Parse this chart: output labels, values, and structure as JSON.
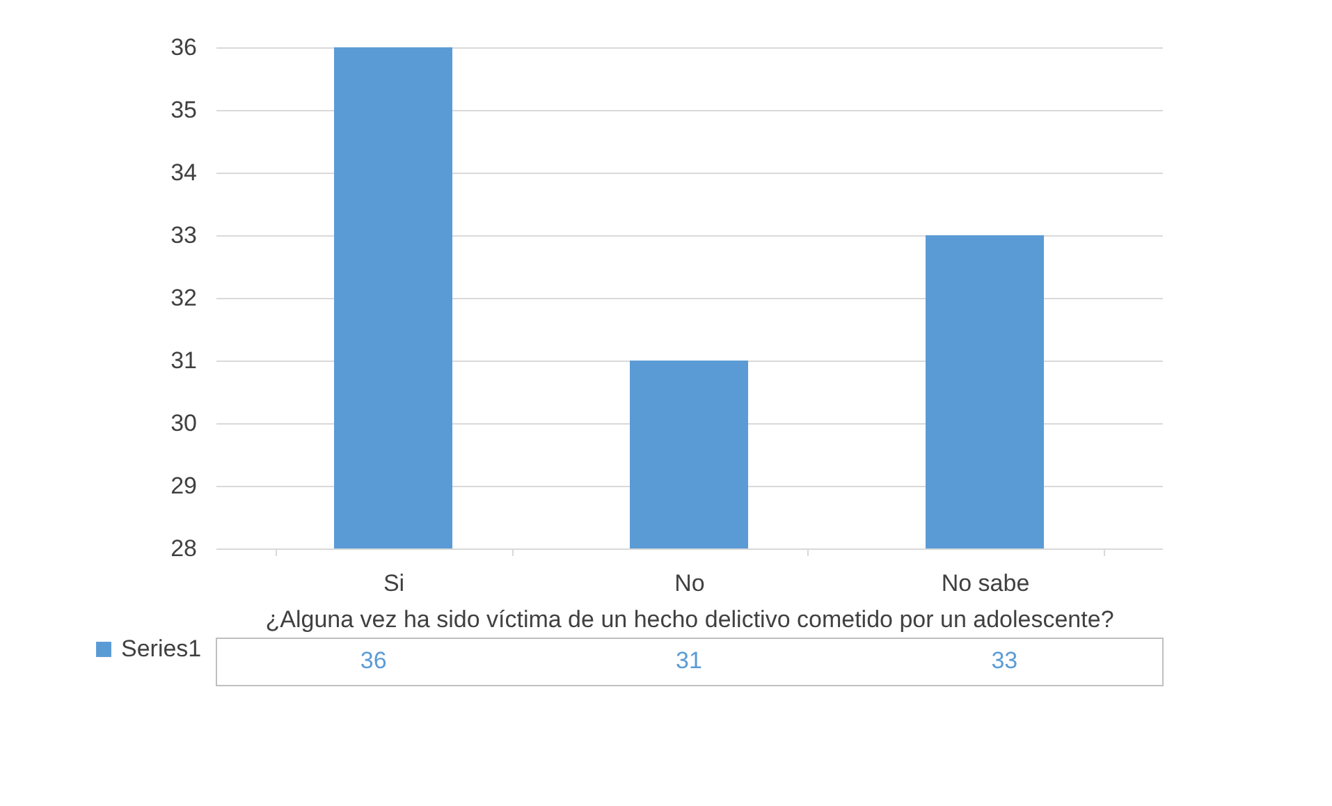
{
  "chart_data": {
    "type": "bar",
    "xlabel": "¿Alguna vez ha sido víctima de un hecho delictivo cometido por un adolescente?",
    "categories": [
      "Si",
      "No",
      "No sabe"
    ],
    "series": [
      {
        "name": "Series1",
        "color": "#5b9bd5",
        "values": [
          36,
          31,
          33
        ]
      }
    ],
    "ylim": [
      28,
      36
    ],
    "yticks": [
      28,
      29,
      30,
      31,
      32,
      33,
      34,
      35,
      36
    ],
    "grid": "y",
    "data_labels": true,
    "legend": "bottom left"
  }
}
